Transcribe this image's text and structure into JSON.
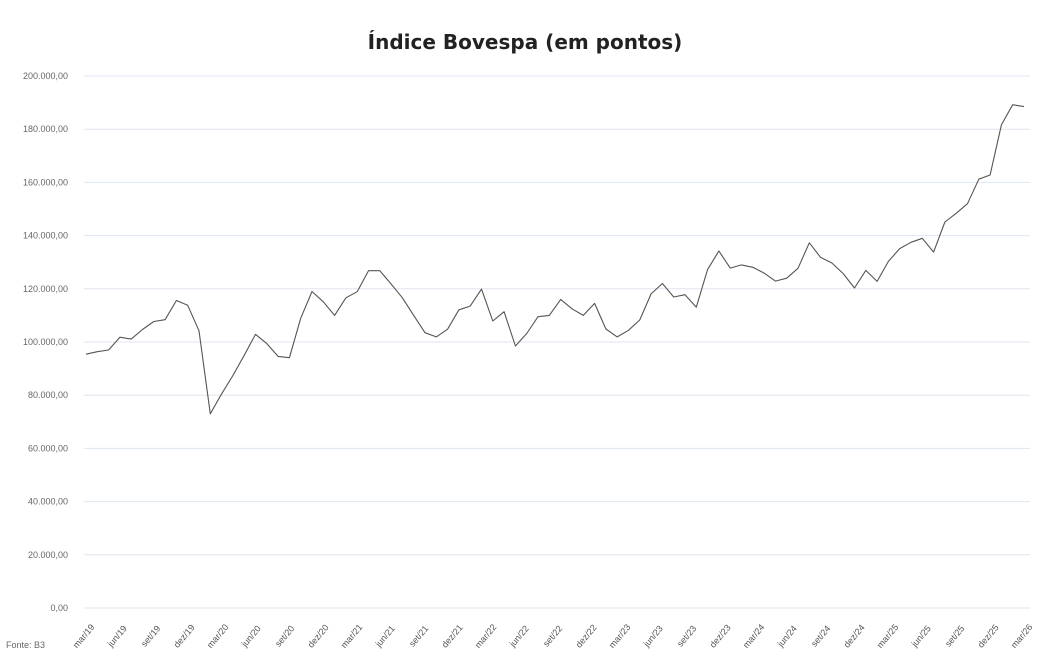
{
  "chart_data": {
    "type": "line",
    "title": "Índice Bovespa (em pontos)",
    "xlabel": "",
    "ylabel": "",
    "source": "Fonte: B3",
    "ylim": [
      0,
      200000
    ],
    "yticks": [
      0,
      20000,
      40000,
      60000,
      80000,
      100000,
      120000,
      140000,
      160000,
      180000,
      200000
    ],
    "ytick_labels": [
      "0,00",
      "20.000,00",
      "40.000,00",
      "60.000,00",
      "80.000,00",
      "100.000,00",
      "120.000,00",
      "140.000,00",
      "160.000,00",
      "180.000,00",
      "200.000,00"
    ],
    "grid": true,
    "line_color": "#555555",
    "xtick_labels": [
      "mar/19",
      "jun/19",
      "set/19",
      "dez/19",
      "mar/20",
      "jun/20",
      "set/20",
      "dez/20",
      "mar/21",
      "jun/21",
      "set/21",
      "dez/21",
      "mar/22",
      "jun/22",
      "set/22",
      "dez/22",
      "mar/23",
      "jun/23",
      "set/23",
      "dez/23",
      "mar/24",
      "jun/24",
      "set/24",
      "dez/24",
      "mar/25",
      "jun/25",
      "set/25",
      "dez/25",
      "mar/26"
    ],
    "series": [
      {
        "values": [
          95400,
          96350,
          97000,
          101800,
          101100,
          104700,
          107700,
          108400,
          115600,
          113800,
          104200,
          73000,
          80500,
          87400,
          95000,
          102900,
          99400,
          94600,
          94100,
          108900,
          119000,
          115100,
          110000,
          116600,
          118900,
          126800,
          126800,
          121800,
          116600,
          110000,
          103500,
          101900,
          104800,
          112100,
          113500,
          119900,
          107900,
          111400,
          98500,
          103200,
          109500,
          110000,
          116000,
          112500,
          110000,
          114500,
          104900,
          101900,
          104400,
          108300,
          118100,
          122000,
          116900,
          117800,
          113100,
          127300,
          134200,
          127800,
          129000,
          128100,
          125900,
          122900,
          124000,
          127700,
          137300,
          131800,
          129700,
          125700,
          120300,
          126900,
          122800,
          130300,
          135100,
          137500,
          139000,
          133800,
          145100,
          148400,
          152000,
          161200,
          162800,
          181600,
          189200,
          188500
        ]
      }
    ]
  }
}
